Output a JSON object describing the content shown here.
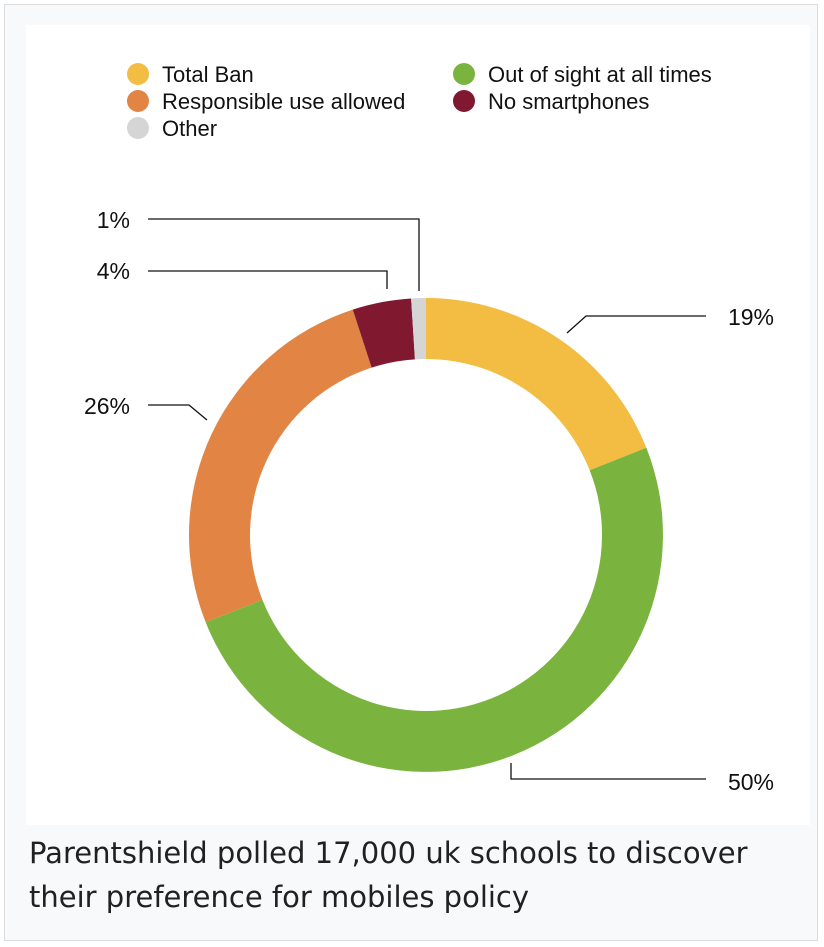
{
  "chart_data": {
    "type": "donut",
    "title": "",
    "series": [
      {
        "name": "Total Ban",
        "value": 19,
        "label": "19%",
        "color": "#f2bd42"
      },
      {
        "name": "Out of sight at all times",
        "value": 50,
        "label": "50%",
        "color": "#7ab43f"
      },
      {
        "name": "Responsible use allowed",
        "value": 26,
        "label": "26%",
        "color": "#e28444"
      },
      {
        "name": "No smartphones",
        "value": 4,
        "label": "4%",
        "color": "#80182f"
      },
      {
        "name": "Other",
        "value": 1,
        "label": "1%",
        "color": "#d5d5d5"
      }
    ],
    "legend": {
      "placement": "top",
      "items": [
        "Total Ban",
        "Responsible use allowed",
        "Other",
        "Out of sight at all times",
        "No smartphones"
      ]
    }
  },
  "caption": "Parentshield polled 17,000 uk schools to discover their preference for mobiles policy"
}
